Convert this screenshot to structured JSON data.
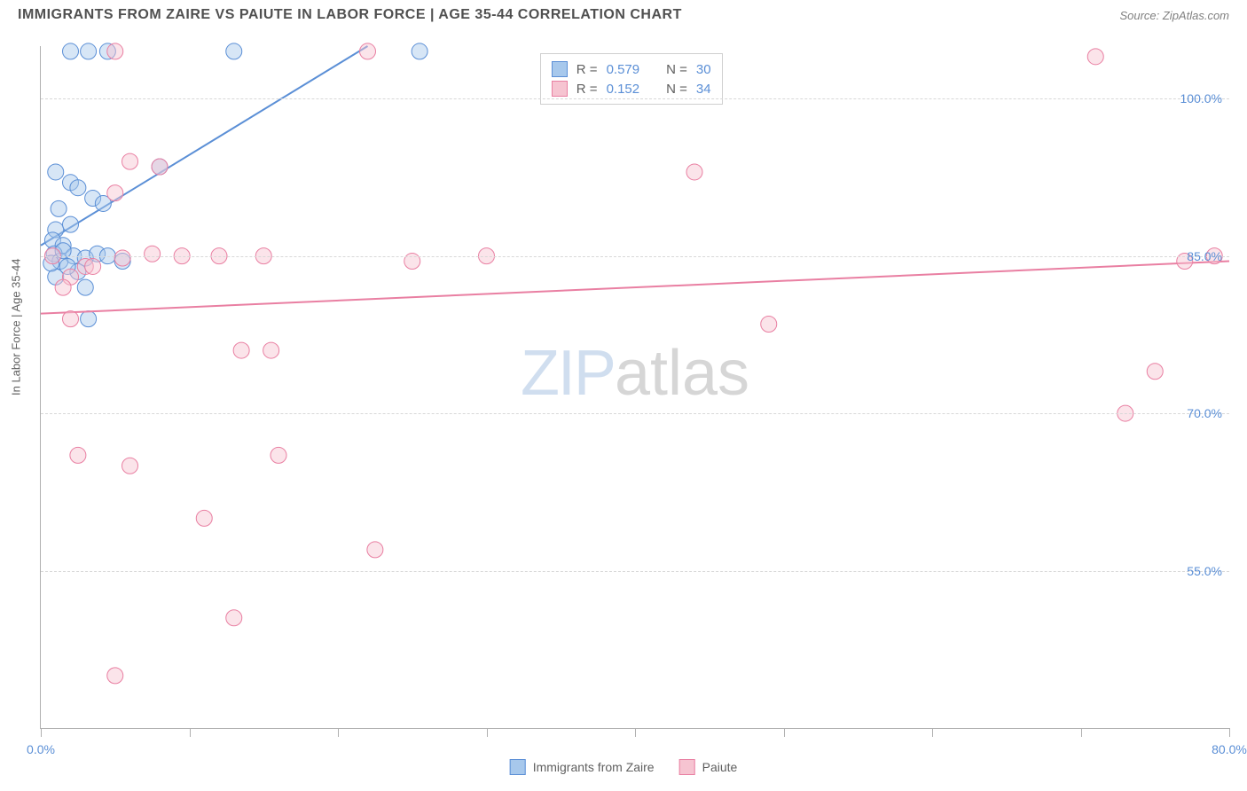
{
  "title": "IMMIGRANTS FROM ZAIRE VS PAIUTE IN LABOR FORCE | AGE 35-44 CORRELATION CHART",
  "source": "Source: ZipAtlas.com",
  "y_axis_label": "In Labor Force | Age 35-44",
  "watermark_a": "ZIP",
  "watermark_b": "atlas",
  "chart": {
    "type": "scatter",
    "xlim": [
      0,
      80
    ],
    "ylim": [
      40,
      105
    ],
    "x_ticks": [
      0,
      10,
      20,
      30,
      40,
      50,
      60,
      70,
      80
    ],
    "x_tick_labels": {
      "0": "0.0%",
      "80": "80.0%"
    },
    "y_gridlines": [
      55,
      70,
      85,
      100
    ],
    "y_tick_labels": {
      "55": "55.0%",
      "70": "70.0%",
      "85": "85.0%",
      "100": "100.0%"
    },
    "background_color": "#ffffff",
    "grid_color": "#d8d8d8",
    "axis_color": "#b0b0b0",
    "tick_label_color": "#5b8fd6",
    "marker_radius": 9,
    "marker_opacity": 0.45,
    "line_width": 2,
    "series": [
      {
        "name": "Immigrants from Zaire",
        "color_fill": "#a7c8ec",
        "color_stroke": "#5b8fd6",
        "R": 0.579,
        "N": 30,
        "trend": {
          "x1": 0,
          "y1": 86,
          "x2": 22,
          "y2": 105
        },
        "points": [
          [
            2.0,
            104.5
          ],
          [
            3.2,
            104.5
          ],
          [
            4.5,
            104.5
          ],
          [
            13.0,
            104.5
          ],
          [
            25.5,
            104.5
          ],
          [
            1.0,
            93.0
          ],
          [
            2.0,
            92.0
          ],
          [
            8.0,
            93.5
          ],
          [
            3.5,
            90.5
          ],
          [
            2.5,
            91.5
          ],
          [
            1.2,
            89.5
          ],
          [
            4.2,
            90.0
          ],
          [
            1.0,
            87.5
          ],
          [
            0.8,
            86.5
          ],
          [
            2.0,
            88.0
          ],
          [
            1.5,
            86.0
          ],
          [
            0.9,
            85.2
          ],
          [
            1.3,
            84.5
          ],
          [
            2.2,
            85.0
          ],
          [
            3.0,
            84.8
          ],
          [
            1.0,
            83.0
          ],
          [
            2.5,
            83.5
          ],
          [
            3.8,
            85.2
          ],
          [
            1.8,
            84.0
          ],
          [
            0.7,
            84.3
          ],
          [
            4.5,
            85.0
          ],
          [
            3.0,
            82.0
          ],
          [
            5.5,
            84.5
          ],
          [
            3.2,
            79.0
          ],
          [
            1.5,
            85.5
          ]
        ]
      },
      {
        "name": "Paiute",
        "color_fill": "#f6c4d1",
        "color_stroke": "#e97fa2",
        "R": 0.152,
        "N": 34,
        "trend": {
          "x1": 0,
          "y1": 79.5,
          "x2": 80,
          "y2": 84.5
        },
        "points": [
          [
            22.0,
            104.5
          ],
          [
            71.0,
            104.0
          ],
          [
            5.0,
            104.5
          ],
          [
            6.0,
            94.0
          ],
          [
            8.0,
            93.5
          ],
          [
            5.0,
            91.0
          ],
          [
            44.0,
            93.0
          ],
          [
            0.8,
            85.0
          ],
          [
            3.0,
            84.0
          ],
          [
            5.5,
            84.8
          ],
          [
            7.5,
            85.2
          ],
          [
            9.5,
            85.0
          ],
          [
            12.0,
            85.0
          ],
          [
            15.0,
            85.0
          ],
          [
            25.0,
            84.5
          ],
          [
            30.0,
            85.0
          ],
          [
            77.0,
            84.5
          ],
          [
            79.0,
            85.0
          ],
          [
            75.0,
            74.0
          ],
          [
            73.0,
            70.0
          ],
          [
            2.0,
            83.0
          ],
          [
            1.5,
            82.0
          ],
          [
            2.0,
            79.0
          ],
          [
            3.5,
            84.0
          ],
          [
            49.0,
            78.5
          ],
          [
            13.5,
            76.0
          ],
          [
            15.5,
            76.0
          ],
          [
            2.5,
            66.0
          ],
          [
            6.0,
            65.0
          ],
          [
            16.0,
            66.0
          ],
          [
            11.0,
            60.0
          ],
          [
            22.5,
            57.0
          ],
          [
            13.0,
            50.5
          ],
          [
            5.0,
            45.0
          ]
        ]
      }
    ]
  },
  "legend_top": {
    "rows": [
      {
        "swatch_fill": "#a7c8ec",
        "swatch_stroke": "#5b8fd6",
        "r_label": "R =",
        "r_value": "0.579",
        "n_label": "N =",
        "n_value": "30"
      },
      {
        "swatch_fill": "#f6c4d1",
        "swatch_stroke": "#e97fa2",
        "r_label": "R =",
        "r_value": "0.152",
        "n_label": "N =",
        "n_value": "34"
      }
    ]
  },
  "legend_bottom": {
    "items": [
      {
        "swatch_fill": "#a7c8ec",
        "swatch_stroke": "#5b8fd6",
        "label": "Immigrants from Zaire"
      },
      {
        "swatch_fill": "#f6c4d1",
        "swatch_stroke": "#e97fa2",
        "label": "Paiute"
      }
    ]
  }
}
